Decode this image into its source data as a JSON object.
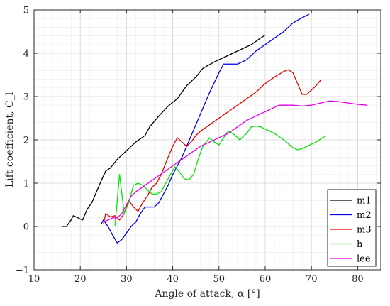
{
  "chart_data": {
    "type": "line",
    "xlabel": "Angle of attack, α [°]",
    "ylabel": "Lift coefficient, C_l",
    "xlim": [
      10,
      85
    ],
    "ylim": [
      -1,
      5
    ],
    "xticks": [
      10,
      20,
      30,
      40,
      50,
      60,
      70,
      80
    ],
    "yticks": [
      -1,
      0,
      1,
      2,
      3,
      4,
      5
    ],
    "grid": "on (major and minor)",
    "legend_position": "bottom-right",
    "series": [
      {
        "name": "m1",
        "color": "#000000",
        "x": [
          16,
          17,
          18,
          18.5,
          19.5,
          20.5,
          21.5,
          22.5,
          23.5,
          24.5,
          25.5,
          26.5,
          28,
          30,
          32,
          34,
          35,
          37,
          39,
          41,
          43,
          45,
          46.5,
          49,
          51,
          53,
          55,
          57,
          59,
          60
        ],
        "y": [
          0.0,
          0.0,
          0.15,
          0.25,
          0.2,
          0.15,
          0.4,
          0.55,
          0.8,
          1.05,
          1.28,
          1.35,
          1.55,
          1.75,
          1.95,
          2.1,
          2.3,
          2.55,
          2.78,
          2.95,
          3.25,
          3.45,
          3.65,
          3.8,
          3.9,
          4.0,
          4.1,
          4.2,
          4.35,
          4.42
        ]
      },
      {
        "name": "m2",
        "color": "#0000e6",
        "x": [
          24.5,
          25,
          26,
          27,
          28,
          29,
          30,
          31,
          32,
          33,
          34,
          35,
          36,
          37,
          38,
          39,
          40,
          42,
          44,
          46,
          48,
          50,
          51,
          52,
          53,
          54,
          56,
          58,
          60,
          62,
          64,
          66,
          68,
          69.5
        ],
        "y": [
          0.05,
          0.15,
          0.0,
          -0.2,
          -0.38,
          -0.3,
          -0.15,
          0.0,
          0.1,
          0.3,
          0.45,
          0.45,
          0.45,
          0.55,
          0.75,
          0.95,
          1.2,
          1.6,
          2.1,
          2.6,
          3.1,
          3.55,
          3.75,
          3.75,
          3.75,
          3.75,
          3.85,
          4.05,
          4.2,
          4.35,
          4.5,
          4.7,
          4.82,
          4.9
        ]
      },
      {
        "name": "m3",
        "color": "#e60000",
        "x": [
          25,
          25.5,
          26.5,
          27.5,
          28.5,
          29.5,
          30.5,
          31.5,
          32.5,
          33.5,
          34.5,
          35.5,
          36.5,
          37.5,
          39,
          40,
          41,
          42,
          43,
          44,
          45,
          46,
          48,
          50,
          52,
          54,
          56,
          58,
          60,
          62,
          64,
          65,
          66,
          67,
          68,
          69,
          70,
          71,
          72
        ],
        "y": [
          0.05,
          0.3,
          0.22,
          0.25,
          0.15,
          0.3,
          0.6,
          0.45,
          0.35,
          0.55,
          0.7,
          0.9,
          1.0,
          1.2,
          1.6,
          1.85,
          2.05,
          1.95,
          1.85,
          1.95,
          2.1,
          2.2,
          2.35,
          2.5,
          2.65,
          2.8,
          2.95,
          3.1,
          3.3,
          3.45,
          3.58,
          3.62,
          3.55,
          3.3,
          3.05,
          3.05,
          3.15,
          3.25,
          3.38
        ]
      },
      {
        "name": "h",
        "color": "#00e600",
        "x": [
          27.5,
          28.5,
          29.5,
          30.5,
          31.5,
          32.5,
          33.5,
          34.5,
          35.5,
          36.5,
          37.5,
          38.5,
          39.5,
          40.5,
          41.5,
          42.5,
          43.5,
          44.5,
          45.5,
          46.5,
          48,
          49,
          50,
          51,
          52,
          53,
          54.5,
          56,
          57,
          58,
          59,
          60,
          62,
          64,
          66,
          67,
          68,
          69,
          70,
          71,
          72,
          73
        ],
        "y": [
          0.0,
          1.2,
          0.3,
          0.55,
          0.95,
          1.0,
          0.95,
          0.85,
          0.75,
          0.75,
          0.8,
          1.0,
          1.2,
          1.38,
          1.25,
          1.1,
          1.08,
          1.2,
          1.55,
          1.85,
          2.05,
          1.95,
          1.88,
          2.05,
          2.2,
          2.15,
          2.0,
          2.15,
          2.3,
          2.32,
          2.3,
          2.25,
          2.15,
          2.0,
          1.82,
          1.77,
          1.8,
          1.85,
          1.9,
          1.95,
          2.02,
          2.08
        ]
      },
      {
        "name": "lee",
        "color": "#e600e6",
        "x": [
          25,
          26,
          27,
          28,
          29,
          30,
          31,
          32,
          34,
          36,
          38,
          40,
          42,
          44,
          46,
          48,
          50,
          52,
          54,
          56,
          58,
          60,
          62,
          63,
          64,
          66,
          68,
          70,
          72,
          74,
          76,
          78,
          80,
          82
        ],
        "y": [
          0.1,
          0.15,
          0.2,
          0.2,
          0.3,
          0.5,
          0.7,
          0.8,
          0.95,
          1.1,
          1.25,
          1.4,
          1.55,
          1.7,
          1.85,
          1.95,
          2.05,
          2.15,
          2.3,
          2.45,
          2.55,
          2.65,
          2.75,
          2.8,
          2.8,
          2.8,
          2.78,
          2.8,
          2.85,
          2.9,
          2.88,
          2.85,
          2.82,
          2.8
        ]
      }
    ]
  }
}
